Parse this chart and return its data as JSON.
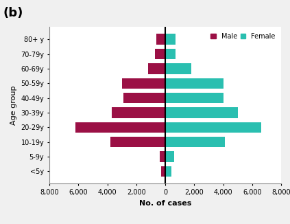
{
  "age_groups": [
    "<5y",
    "5-9y",
    "10-19y",
    "20-29y",
    "30-39y",
    "40-49y",
    "50-59y",
    "60-69y",
    "70-79y",
    "80+ y"
  ],
  "male_values": [
    300,
    400,
    3800,
    6200,
    3700,
    2900,
    3000,
    1200,
    700,
    600
  ],
  "female_values": [
    400,
    600,
    4100,
    6600,
    5000,
    4000,
    4000,
    1800,
    700,
    700
  ],
  "male_color": "#9b1045",
  "female_color": "#2abfb0",
  "xlim": 8000,
  "xlabel": "No. of cases",
  "ylabel": "Age group",
  "panel_label": "(b)",
  "legend_male": "Male",
  "legend_female": "Female",
  "xtick_labels": [
    "8,000",
    "6,000",
    "4,000",
    "2,000",
    "0",
    "2,000",
    "4,000",
    "6,000",
    "8,000"
  ],
  "fig_bg": "#f0f0f0",
  "plot_bg": "#ffffff"
}
